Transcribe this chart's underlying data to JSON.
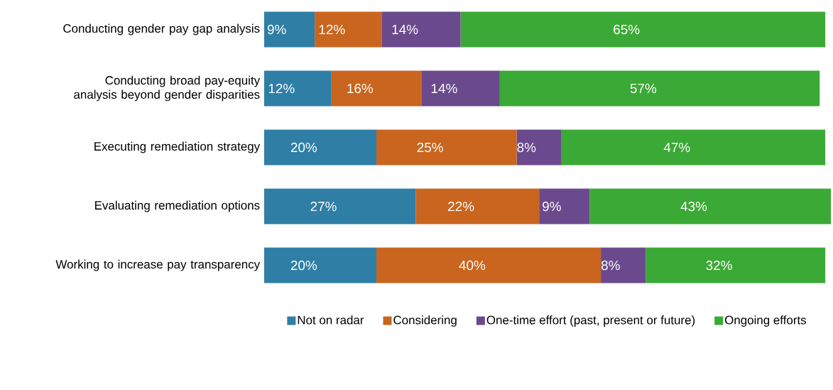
{
  "chart_data": {
    "type": "bar",
    "orientation": "horizontal",
    "stacked": true,
    "legend": "bottom",
    "categories": [
      "Conducting gender pay gap analysis",
      "Conducting broad pay-equity analysis beyond gender disparities",
      "Executing remediation strategy",
      "Evaluating remediation options",
      "Working to increase pay transparency"
    ],
    "series": [
      {
        "name": "Not on radar",
        "color": "#2f7ea6",
        "values": [
          9,
          12,
          20,
          27,
          20
        ],
        "value_labels": [
          "9%",
          "12%",
          "20%",
          "27%",
          "20%"
        ]
      },
      {
        "name": "Considering",
        "color": "#c9651e",
        "values": [
          12,
          16,
          25,
          22,
          40
        ],
        "value_labels": [
          "12%",
          "16%",
          "25%",
          "22%",
          "40%"
        ]
      },
      {
        "name": "One-time effort (past, present or future)",
        "color": "#6a4a8c",
        "values": [
          14,
          14,
          8,
          9,
          8
        ],
        "value_labels": [
          "14%",
          "14%",
          "8%",
          "9%",
          "8%"
        ]
      },
      {
        "name": "Ongoing efforts",
        "color": "#3ba935",
        "values": [
          65,
          57,
          47,
          43,
          32
        ],
        "value_labels": [
          "65%",
          "57%",
          "47%",
          "43%",
          "32%"
        ]
      }
    ]
  }
}
